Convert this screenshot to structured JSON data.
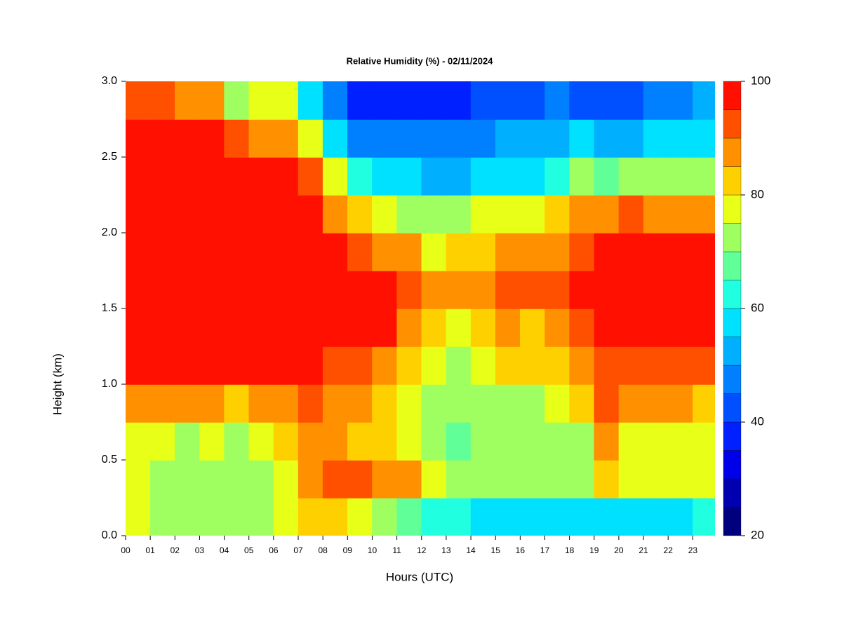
{
  "chart_data": {
    "type": "heatmap",
    "title": "Relative Humidity (%) - 02/11/2024",
    "x_label": "Hours (UTC)",
    "y_label": "Height (km)",
    "x": [
      0.5,
      1.5,
      2.5,
      3.5,
      4.5,
      5.5,
      6.5,
      7.5,
      8.5,
      9.5,
      10.5,
      11.5,
      12.5,
      13.5,
      14.5,
      15.5,
      16.5,
      17.5,
      18.5,
      19.5,
      20.5,
      21.5,
      22.5,
      23.5
    ],
    "y": [
      0.125,
      0.375,
      0.625,
      0.875,
      1.125,
      1.375,
      1.625,
      1.875,
      2.125,
      2.375,
      2.625,
      2.875
    ],
    "z": [
      [
        78,
        74,
        70,
        72,
        72,
        72,
        78,
        84,
        82,
        76,
        70,
        68,
        64,
        62,
        58,
        56,
        56,
        55,
        55,
        58,
        58,
        58,
        58,
        60
      ],
      [
        76,
        74,
        72,
        74,
        70,
        72,
        78,
        88,
        90,
        90,
        88,
        86,
        78,
        74,
        74,
        72,
        72,
        72,
        72,
        84,
        76,
        76,
        76,
        76
      ],
      [
        78,
        76,
        74,
        76,
        70,
        75,
        80,
        88,
        86,
        84,
        82,
        76,
        70,
        68,
        70,
        70,
        70,
        70,
        72,
        86,
        76,
        76,
        78,
        78
      ],
      [
        88,
        88,
        86,
        86,
        82,
        86,
        88,
        90,
        88,
        86,
        84,
        78,
        72,
        70,
        72,
        74,
        74,
        76,
        82,
        90,
        86,
        86,
        86,
        84
      ],
      [
        96,
        96,
        96,
        96,
        96,
        96,
        96,
        96,
        92,
        90,
        88,
        82,
        76,
        74,
        76,
        80,
        80,
        82,
        86,
        92,
        94,
        92,
        92,
        92
      ],
      [
        98,
        98,
        98,
        98,
        98,
        98,
        98,
        98,
        98,
        98,
        96,
        88,
        80,
        78,
        82,
        85,
        84,
        86,
        90,
        96,
        97,
        97,
        97,
        97
      ],
      [
        98,
        98,
        98,
        98,
        98,
        98,
        98,
        98,
        98,
        98,
        95,
        92,
        85,
        85,
        88,
        90,
        90,
        92,
        95,
        97,
        98,
        98,
        98,
        98
      ],
      [
        98,
        98,
        98,
        98,
        98,
        98,
        98,
        98,
        98,
        92,
        88,
        85,
        78,
        80,
        82,
        85,
        85,
        88,
        92,
        96,
        96,
        96,
        97,
        97
      ],
      [
        98,
        98,
        98,
        98,
        98,
        98,
        98,
        98,
        88,
        80,
        75,
        72,
        70,
        72,
        75,
        78,
        78,
        80,
        85,
        88,
        90,
        88,
        88,
        88
      ],
      [
        98,
        98,
        98,
        98,
        98,
        98,
        98,
        92,
        75,
        60,
        55,
        55,
        52,
        52,
        55,
        58,
        58,
        62,
        70,
        68,
        70,
        70,
        72,
        72
      ],
      [
        97,
        97,
        96,
        95,
        92,
        85,
        85,
        75,
        55,
        48,
        45,
        45,
        45,
        46,
        48,
        50,
        50,
        52,
        55,
        50,
        52,
        55,
        58,
        58
      ],
      [
        92,
        90,
        88,
        85,
        72,
        75,
        78,
        55,
        45,
        38,
        35,
        35,
        38,
        38,
        40,
        42,
        42,
        48,
        42,
        40,
        42,
        45,
        48,
        50
      ]
    ],
    "xlim": [
      0,
      23.9
    ],
    "ylim": [
      0,
      3
    ],
    "xticks": [
      {
        "value": 0,
        "label": "00"
      },
      {
        "value": 1,
        "label": "01"
      },
      {
        "value": 2,
        "label": "02"
      },
      {
        "value": 3,
        "label": "03"
      },
      {
        "value": 4,
        "label": "04"
      },
      {
        "value": 5,
        "label": "05"
      },
      {
        "value": 6,
        "label": "06"
      },
      {
        "value": 7,
        "label": "07"
      },
      {
        "value": 8,
        "label": "08"
      },
      {
        "value": 9,
        "label": "09"
      },
      10,
      11,
      12,
      13,
      14,
      15,
      16,
      17,
      18,
      19,
      20,
      21,
      22,
      23
    ],
    "yticks": [
      {
        "value": 0,
        "label": "0.0"
      },
      {
        "value": 0.5,
        "label": "0.5"
      },
      {
        "value": 1,
        "label": "1.0"
      },
      {
        "value": 1.5,
        "label": "1.5"
      },
      {
        "value": 2,
        "label": "2.0"
      },
      {
        "value": 2.5,
        "label": "2.5"
      },
      {
        "value": 3,
        "label": "3.0"
      }
    ],
    "levels": [
      20,
      25,
      30,
      35,
      40,
      45,
      50,
      55,
      60,
      65,
      70,
      75,
      80,
      85,
      90,
      95,
      100
    ],
    "colors": [
      "#00007f",
      "#0000b0",
      "#0000e8",
      "#0020ff",
      "#0050ff",
      "#0080ff",
      "#00b0ff",
      "#00e0ff",
      "#20ffe0",
      "#60ff98",
      "#a0ff60",
      "#e8ff18",
      "#ffd000",
      "#ff9000",
      "#ff5000",
      "#ff1000",
      "#c80000",
      "#7f0000"
    ],
    "colorbar_ticks": [
      20,
      40,
      60,
      80,
      100
    ]
  }
}
